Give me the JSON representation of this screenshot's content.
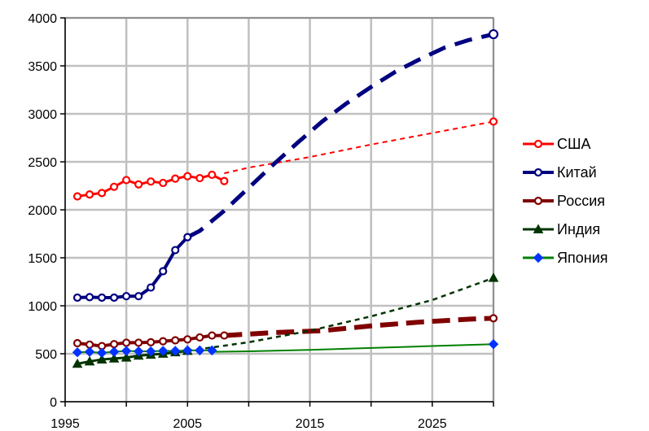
{
  "chart_data": {
    "type": "line",
    "title": "",
    "xlabel": "",
    "ylabel": "",
    "xlim": [
      1995,
      2030
    ],
    "ylim": [
      0,
      4000
    ],
    "x_ticks": [
      1995,
      2005,
      2015,
      2025
    ],
    "y_ticks": [
      0,
      500,
      1000,
      1500,
      2000,
      2500,
      3000,
      3500,
      4000
    ],
    "grid": true,
    "legend_position": "right",
    "series": [
      {
        "name": "США",
        "color": "#ff0000",
        "marker": "circle-open",
        "actual": {
          "x": [
            1996,
            1997,
            1998,
            1999,
            2000,
            2001,
            2002,
            2003,
            2004,
            2005,
            2006,
            2007,
            2008
          ],
          "values": [
            2140,
            2160,
            2175,
            2240,
            2310,
            2265,
            2295,
            2280,
            2325,
            2350,
            2330,
            2365,
            2300
          ]
        },
        "projection": {
          "x": [
            2008,
            2010,
            2015,
            2020,
            2025,
            2030
          ],
          "values": [
            2380,
            2440,
            2550,
            2680,
            2800,
            2920
          ]
        }
      },
      {
        "name": "Китай",
        "color": "#000080",
        "marker": "circle-open",
        "actual": {
          "x": [
            1996,
            1997,
            1998,
            1999,
            2000,
            2001,
            2002,
            2003,
            2004,
            2005
          ],
          "values": [
            1085,
            1090,
            1085,
            1085,
            1100,
            1100,
            1190,
            1360,
            1580,
            1715
          ]
        },
        "projection": {
          "x": [
            2005,
            2006,
            2008,
            2010,
            2012,
            2014,
            2016,
            2018,
            2020,
            2022,
            2024,
            2026,
            2028,
            2030
          ],
          "values": [
            1715,
            1780,
            1990,
            2230,
            2470,
            2700,
            2920,
            3110,
            3280,
            3440,
            3570,
            3690,
            3770,
            3830
          ]
        }
      },
      {
        "name": "Россия",
        "color": "#800000",
        "marker": "circle-open",
        "actual": {
          "x": [
            1996,
            1997,
            1998,
            1999,
            2000,
            2001,
            2002,
            2003,
            2004,
            2005,
            2006,
            2007,
            2008
          ],
          "values": [
            610,
            595,
            580,
            600,
            615,
            615,
            620,
            630,
            640,
            650,
            670,
            690,
            690
          ]
        },
        "projection": {
          "x": [
            2008,
            2012,
            2016,
            2020,
            2024,
            2028,
            2030
          ],
          "values": [
            690,
            720,
            740,
            790,
            830,
            860,
            870
          ]
        }
      },
      {
        "name": "Индия",
        "color": "#003300",
        "marker": "triangle",
        "actual": {
          "x": [
            1996,
            1997,
            1998,
            1999,
            2000,
            2001,
            2002,
            2003,
            2004,
            2005
          ],
          "values": [
            395,
            420,
            440,
            450,
            460,
            480,
            490,
            500,
            515,
            530
          ]
        },
        "projection": {
          "x": [
            2005,
            2010,
            2015,
            2020,
            2025,
            2030
          ],
          "values": [
            530,
            620,
            740,
            890,
            1060,
            1290
          ]
        }
      },
      {
        "name": "Япония",
        "color": "#008000",
        "marker_color": "#0033ff",
        "marker": "diamond",
        "actual": {
          "x": [
            1996,
            1997,
            1998,
            1999,
            2000,
            2001,
            2002,
            2003,
            2004,
            2005,
            2006,
            2007
          ],
          "values": [
            515,
            520,
            510,
            520,
            530,
            525,
            525,
            530,
            530,
            535,
            535,
            535
          ]
        },
        "projection": {
          "x": [
            2007,
            2010,
            2015,
            2020,
            2025,
            2030
          ],
          "values": [
            520,
            525,
            540,
            560,
            580,
            600
          ]
        }
      }
    ]
  }
}
